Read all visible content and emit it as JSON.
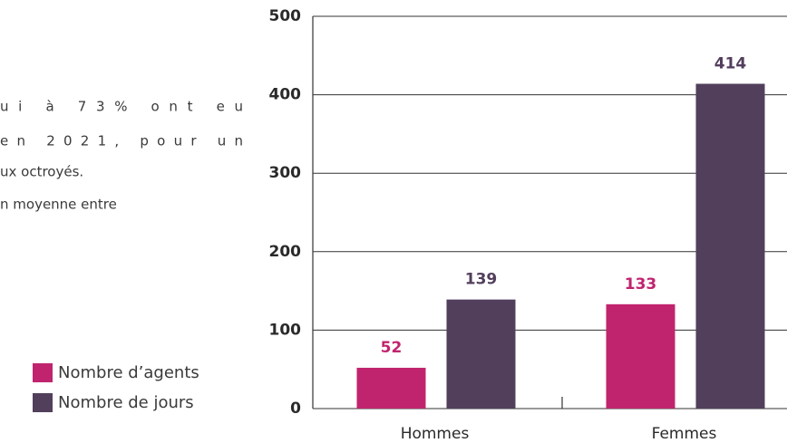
{
  "text_lines": [
    "ui à 73% ont eu",
    "en 2021, pour un",
    "ux octroyés.",
    "n moyenne entre"
  ],
  "chart_data": {
    "type": "bar",
    "categories": [
      "Hommes",
      "Femmes"
    ],
    "series": [
      {
        "name": "Nombre d’agents",
        "color": "#c0246e",
        "values": [
          52,
          133
        ]
      },
      {
        "name": "Nombre de jours",
        "color": "#523f5c",
        "values": [
          139,
          414
        ]
      }
    ],
    "ylim": [
      0,
      500
    ],
    "yticks": [
      0,
      100,
      200,
      300,
      400,
      500
    ],
    "grid": true
  }
}
